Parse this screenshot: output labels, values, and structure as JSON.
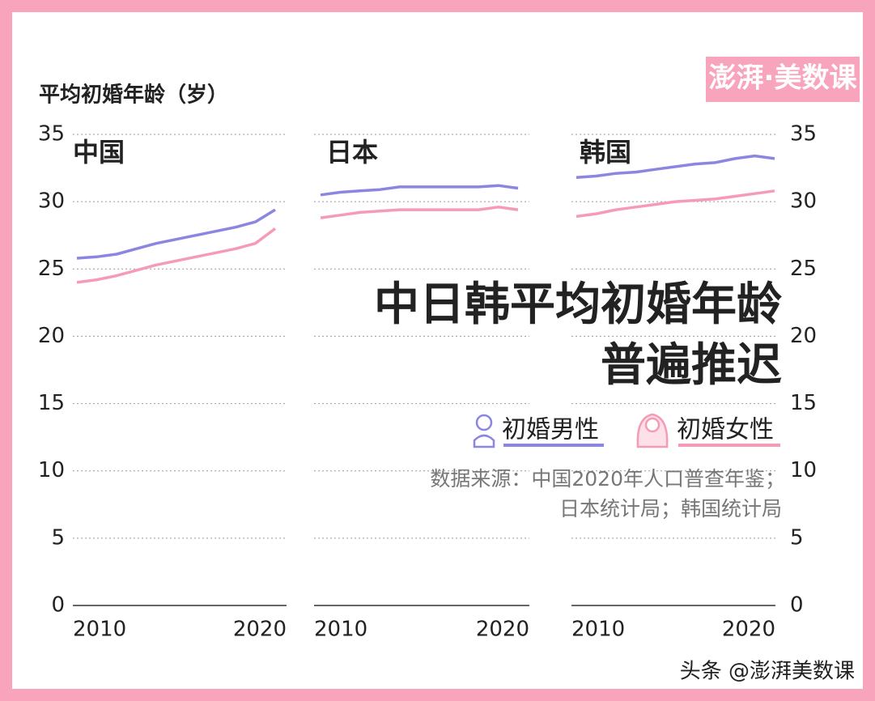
{
  "y_label": "平均初婚年龄（岁）",
  "title": [
    "中日韩平均初婚年龄",
    "普遍推迟"
  ],
  "source": [
    "数据来源：中国2020年人口普查年鉴；",
    "日本统计局；韩国统计局"
  ],
  "logo": "澎湃·美数课",
  "watermark": "头条 @澎湃美数课",
  "chart_data": [
    {
      "type": "line",
      "title": "中国",
      "ytick_side": "left",
      "x": [
        2010,
        2011,
        2012,
        2013,
        2014,
        2015,
        2016,
        2017,
        2018,
        2019,
        2020
      ],
      "xlim": [
        2010,
        2020
      ],
      "xticks": [
        2010,
        2020
      ],
      "ylim": [
        0,
        35
      ],
      "yticks": [
        0,
        5,
        10,
        15,
        20,
        25,
        30,
        35
      ],
      "grid": true,
      "series": [
        {
          "name": "初婚男性",
          "color": "#8b86e0",
          "values": [
            25.8,
            25.9,
            26.1,
            26.5,
            26.9,
            27.2,
            27.5,
            27.8,
            28.1,
            28.5,
            29.4
          ]
        },
        {
          "name": "初婚女性",
          "color": "#f69bb6",
          "values": [
            24.0,
            24.2,
            24.5,
            24.9,
            25.3,
            25.6,
            25.9,
            26.2,
            26.5,
            26.9,
            28.0
          ]
        }
      ]
    },
    {
      "type": "line",
      "title": "日本",
      "ytick_side": "none",
      "x": [
        2010,
        2011,
        2012,
        2013,
        2014,
        2015,
        2016,
        2017,
        2018,
        2019,
        2020
      ],
      "xlim": [
        2010,
        2020
      ],
      "xticks": [
        2010,
        2020
      ],
      "ylim": [
        0,
        35
      ],
      "yticks": [
        0,
        5,
        10,
        15,
        20,
        25,
        30,
        35
      ],
      "grid": true,
      "series": [
        {
          "name": "初婚男性",
          "color": "#8b86e0",
          "values": [
            30.5,
            30.7,
            30.8,
            30.9,
            31.1,
            31.1,
            31.1,
            31.1,
            31.1,
            31.2,
            31.0
          ]
        },
        {
          "name": "初婚女性",
          "color": "#f69bb6",
          "values": [
            28.8,
            29.0,
            29.2,
            29.3,
            29.4,
            29.4,
            29.4,
            29.4,
            29.4,
            29.6,
            29.4
          ]
        }
      ]
    },
    {
      "type": "line",
      "title": "韩国",
      "ytick_side": "right",
      "x": [
        2010,
        2011,
        2012,
        2013,
        2014,
        2015,
        2016,
        2017,
        2018,
        2019,
        2020
      ],
      "xlim": [
        2010,
        2020
      ],
      "xticks": [
        2010,
        2020
      ],
      "ylim": [
        0,
        35
      ],
      "yticks": [
        0,
        5,
        10,
        15,
        20,
        25,
        30,
        35
      ],
      "grid": true,
      "series": [
        {
          "name": "初婚男性",
          "color": "#8b86e0",
          "values": [
            31.8,
            31.9,
            32.1,
            32.2,
            32.4,
            32.6,
            32.8,
            32.9,
            33.2,
            33.4,
            33.2
          ]
        },
        {
          "name": "初婚女性",
          "color": "#f69bb6",
          "values": [
            28.9,
            29.1,
            29.4,
            29.6,
            29.8,
            30.0,
            30.1,
            30.2,
            30.4,
            30.6,
            30.8
          ]
        }
      ]
    }
  ]
}
